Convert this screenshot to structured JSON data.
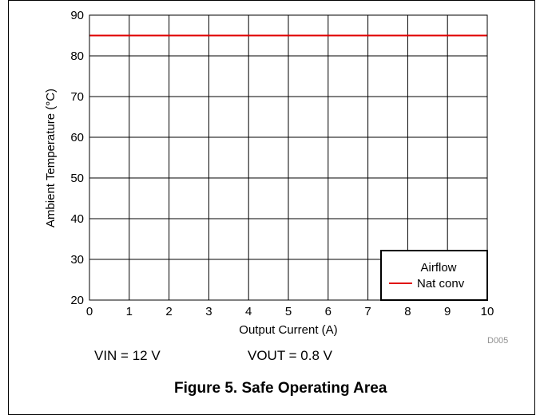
{
  "chart_data": {
    "type": "line",
    "title": "",
    "xlabel": "Output Current (A)",
    "ylabel": "Ambient Temperature (°C)",
    "xlim": [
      0,
      10
    ],
    "ylim": [
      20,
      90
    ],
    "xticks": [
      "0",
      "1",
      "2",
      "3",
      "4",
      "5",
      "6",
      "7",
      "8",
      "9",
      "10"
    ],
    "yticks": [
      "20",
      "30",
      "40",
      "50",
      "60",
      "70",
      "80",
      "90"
    ],
    "grid": true,
    "legend": {
      "title": "Airflow",
      "position": "bottom-right"
    },
    "series": [
      {
        "name": "Nat conv",
        "color": "#e00000",
        "x": [
          0,
          10
        ],
        "y": [
          85,
          85
        ]
      }
    ],
    "figure_id": "D005"
  },
  "conditions": {
    "vin": "VIN = 12 V",
    "vout": "VOUT = 0.8 V"
  },
  "caption": "Figure 5. Safe Operating Area"
}
